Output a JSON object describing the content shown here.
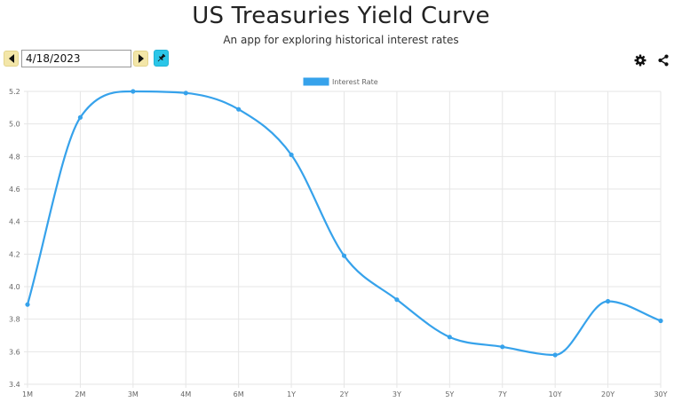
{
  "header": {
    "title": "US Treasuries Yield Curve",
    "subtitle": "An app for exploring historical interest rates"
  },
  "toolbar": {
    "date_value": "4/18/2023",
    "prev_icon": "caret-left-icon",
    "next_icon": "caret-right-icon",
    "pin_icon": "pin-icon",
    "settings_icon": "gear-icon",
    "share_icon": "share-icon"
  },
  "colors": {
    "line": "#36a2eb",
    "nav_button": "#f3e6a8",
    "pin_button": "#2bc6e8",
    "grid": "#e6e6e6"
  },
  "chart_data": {
    "type": "line",
    "categories": [
      "1M",
      "2M",
      "3M",
      "4M",
      "6M",
      "1Y",
      "2Y",
      "3Y",
      "5Y",
      "7Y",
      "10Y",
      "20Y",
      "30Y"
    ],
    "series": [
      {
        "name": "Interest Rate",
        "values": [
          3.89,
          5.04,
          5.2,
          5.19,
          5.09,
          4.81,
          4.19,
          3.92,
          3.69,
          3.63,
          3.58,
          3.91,
          3.79
        ]
      }
    ],
    "y_ticks": [
      "3.4",
      "3.6",
      "3.8",
      "4.0",
      "4.2",
      "4.4",
      "4.6",
      "4.8",
      "5.0",
      "5.2"
    ],
    "ylim": [
      3.4,
      5.2
    ],
    "grid": true,
    "legend": "top-center",
    "smooth": true
  }
}
